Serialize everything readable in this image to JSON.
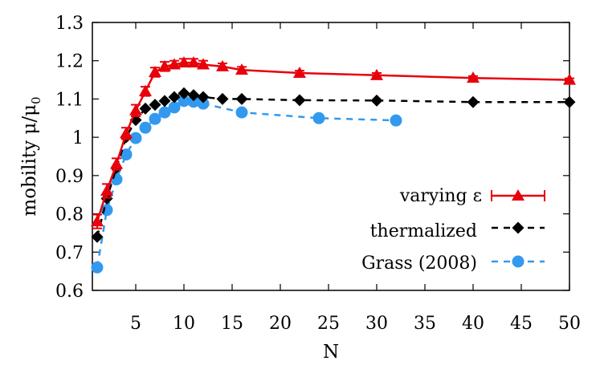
{
  "chart_data": {
    "type": "line",
    "title": "",
    "xlabel": "N",
    "ylabel": "mobility μ/μ",
    "ylabel_sub": "0",
    "xlim": [
      0.5,
      50
    ],
    "ylim": [
      0.6,
      1.3
    ],
    "xticks": [
      5,
      10,
      15,
      20,
      25,
      30,
      35,
      40,
      45,
      50
    ],
    "xtick_labels": [
      "5",
      "10",
      "15",
      "20",
      "25",
      "30",
      "35",
      "40",
      "45",
      "50"
    ],
    "yticks": [
      0.6,
      0.7,
      0.8,
      0.9,
      1.0,
      1.1,
      1.2,
      1.3
    ],
    "ytick_labels": [
      "0.6",
      "0.7",
      "0.8",
      "0.9",
      "1",
      "1.1",
      "1.2",
      "1.3"
    ],
    "grid": false,
    "legend_position": "bottom-right",
    "series": [
      {
        "name": "varying ε",
        "color": "#e8000b",
        "marker": "triangle",
        "line": "solid",
        "error_bars": true,
        "x": [
          1,
          2,
          3,
          4,
          5,
          6,
          7,
          8,
          9,
          10,
          11,
          12,
          14,
          16,
          22,
          30,
          40,
          50
        ],
        "y": [
          0.78,
          0.86,
          0.93,
          1.01,
          1.07,
          1.12,
          1.17,
          1.185,
          1.19,
          1.195,
          1.195,
          1.19,
          1.185,
          1.176,
          1.168,
          1.162,
          1.155,
          1.15
        ],
        "err": [
          0.018,
          0.018,
          0.015,
          0.015,
          0.015,
          0.012,
          0.012,
          0.012,
          0.01,
          0.01,
          0.01,
          0.01,
          0.008,
          0.008,
          0.006,
          0.006,
          0.005,
          0.004
        ]
      },
      {
        "name": "thermalized",
        "color": "#000000",
        "marker": "diamond",
        "line": "dashed",
        "x": [
          1,
          2,
          3,
          4,
          5,
          6,
          7,
          8,
          9,
          10,
          11,
          12,
          14,
          16,
          22,
          30,
          40,
          50
        ],
        "y": [
          0.74,
          0.84,
          0.92,
          1.0,
          1.045,
          1.075,
          1.085,
          1.095,
          1.105,
          1.115,
          1.11,
          1.105,
          1.1,
          1.1,
          1.097,
          1.096,
          1.092,
          1.092
        ]
      },
      {
        "name": "Grass (2008)",
        "color": "#3399ee",
        "marker": "circle",
        "line": "dashed",
        "x": [
          1,
          2,
          3,
          4,
          5,
          6,
          7,
          8,
          9,
          10,
          11,
          12,
          16,
          24,
          32
        ],
        "y": [
          0.66,
          0.81,
          0.89,
          0.955,
          0.998,
          1.025,
          1.048,
          1.065,
          1.078,
          1.095,
          1.093,
          1.088,
          1.065,
          1.05,
          1.044
        ]
      }
    ]
  }
}
